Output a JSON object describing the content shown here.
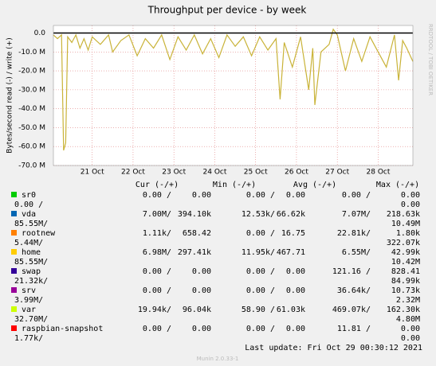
{
  "chart_data": {
    "type": "line",
    "title": "Throughput per device - by week",
    "y_label": "Bytes/second read (-) / write (+)",
    "x": [
      20.05,
      20.15,
      20.25,
      20.3,
      20.35,
      20.4,
      20.5,
      20.6,
      20.7,
      20.8,
      20.9,
      21.0,
      21.2,
      21.4,
      21.5,
      21.7,
      21.9,
      22.1,
      22.3,
      22.5,
      22.7,
      22.9,
      23.1,
      23.3,
      23.5,
      23.7,
      23.9,
      24.1,
      24.3,
      24.5,
      24.7,
      24.9,
      25.1,
      25.3,
      25.5,
      25.6,
      25.7,
      25.9,
      26.1,
      26.3,
      26.4,
      26.45,
      26.6,
      26.8,
      26.9,
      27.0,
      27.2,
      27.4,
      27.6,
      27.8,
      28.0,
      28.2,
      28.4,
      28.5,
      28.6,
      28.7,
      28.85
    ],
    "series": [
      {
        "name": "home",
        "color": "#c9b338",
        "values": [
          -1000000,
          -3000000,
          -1000000,
          -62000000,
          -58000000,
          -2000000,
          -5000000,
          -1000000,
          -8000000,
          -3000000,
          -9000000,
          -2000000,
          -6000000,
          -1000000,
          -10000000,
          -4000000,
          -1000000,
          -12000000,
          -3000000,
          -8000000,
          -1000000,
          -14000000,
          -2000000,
          -9000000,
          -1000000,
          -11000000,
          -3000000,
          -13000000,
          -1000000,
          -7000000,
          -2000000,
          -12000000,
          -2000000,
          -9000000,
          -3000000,
          -35000000,
          -5000000,
          -18000000,
          -2000000,
          -30000000,
          -8000000,
          -38000000,
          -10000000,
          -6000000,
          2000000,
          -1000000,
          -20000000,
          -3000000,
          -15000000,
          -2000000,
          -10000000,
          -18000000,
          -1000000,
          -25000000,
          -4000000,
          -8000000,
          -15000000
        ]
      }
    ],
    "xlim": [
      20.05,
      28.85
    ],
    "xticks": [
      {
        "value": 21,
        "label": "21 Oct"
      },
      {
        "value": 22,
        "label": "22 Oct"
      },
      {
        "value": 23,
        "label": "23 Oct"
      },
      {
        "value": 24,
        "label": "24 Oct"
      },
      {
        "value": 25,
        "label": "25 Oct"
      },
      {
        "value": 26,
        "label": "26 Oct"
      },
      {
        "value": 27,
        "label": "27 Oct"
      },
      {
        "value": 28,
        "label": "28 Oct"
      }
    ],
    "ylim": [
      -70000000,
      4000000
    ],
    "yticks": [
      {
        "value": 0,
        "label": "0.0"
      },
      {
        "value": -10000000,
        "label": "-10.0 M"
      },
      {
        "value": -20000000,
        "label": "-20.0 M"
      },
      {
        "value": -30000000,
        "label": "-30.0 M"
      },
      {
        "value": -40000000,
        "label": "-40.0 M"
      },
      {
        "value": -50000000,
        "label": "-50.0 M"
      },
      {
        "value": -60000000,
        "label": "-60.0 M"
      },
      {
        "value": -70000000,
        "label": "-70.0 M"
      }
    ],
    "grid": true
  },
  "legend_table": {
    "headers": [
      "Cur (-/+)",
      "Min (-/+)",
      "Avg (-/+)",
      "Max (-/+)"
    ],
    "rows": [
      {
        "name": "sr0",
        "color": "#00cc00",
        "cells": [
          "0.00 /",
          "0.00",
          "0.00 /",
          "0.00",
          "0.00 /",
          "0.00",
          "0.00 /",
          "0.00"
        ]
      },
      {
        "name": "vda",
        "color": "#0066b3",
        "cells": [
          "7.00M/",
          "394.10k",
          "12.53k/",
          "66.62k",
          "7.07M/",
          "218.63k",
          "85.55M/",
          "10.49M"
        ]
      },
      {
        "name": "rootnew",
        "color": "#ff8000",
        "cells": [
          "1.11k/",
          "658.42",
          "0.00 /",
          "16.75",
          "22.81k/",
          "1.80k",
          "5.44M/",
          "322.07k"
        ]
      },
      {
        "name": "home",
        "color": "#ffcc00",
        "cells": [
          "6.98M/",
          "297.41k",
          "11.95k/",
          "467.71",
          "6.55M/",
          "42.99k",
          "85.55M/",
          "10.42M"
        ]
      },
      {
        "name": "swap",
        "color": "#330099",
        "cells": [
          "0.00 /",
          "0.00",
          "0.00 /",
          "0.00",
          "121.16 /",
          "828.41",
          "21.32k/",
          "84.99k"
        ]
      },
      {
        "name": "srv",
        "color": "#990099",
        "cells": [
          "0.00 /",
          "0.00",
          "0.00 /",
          "0.00",
          "36.64k/",
          "10.73k",
          "3.99M/",
          "2.32M"
        ]
      },
      {
        "name": "var",
        "color": "#ccff00",
        "cells": [
          "19.94k/",
          "96.04k",
          "58.90 /",
          "61.03k",
          "469.07k/",
          "162.30k",
          "32.70M/",
          "4.80M"
        ]
      },
      {
        "name": "raspbian-snapshot",
        "color": "#ff0000",
        "cells": [
          "0.00 /",
          "0.00",
          "0.00 /",
          "0.00",
          "11.81 /",
          "0.00",
          "1.77k/",
          "0.00"
        ]
      }
    ]
  },
  "footer": {
    "last_update": "Last update: Fri Oct 29 00:30:12 2021",
    "version": "Munin 2.0.33-1",
    "watermark": "RRDTOOL / TOBI OETIKER"
  }
}
